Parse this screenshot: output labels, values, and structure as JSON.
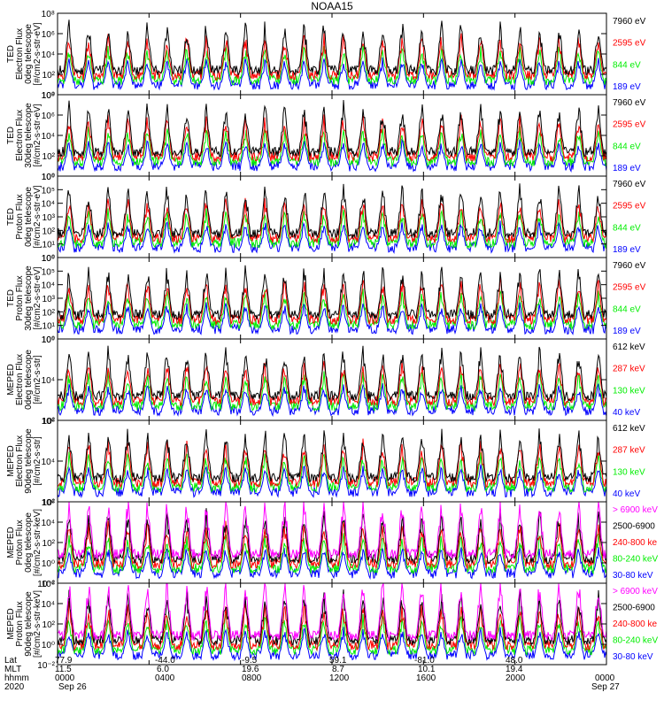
{
  "title": "NOAA15",
  "colors": {
    "blue": "#0000ff",
    "red": "#ff0000",
    "green": "#00ee00",
    "black": "#000000",
    "magenta": "#ff00ff"
  },
  "chart_data": [
    {
      "type": "line",
      "instrument": "TED",
      "ylabel": [
        "TED",
        "Electron Flux",
        "0deg telescope",
        "[#/cm2-s-str-eV]"
      ],
      "log_y": true,
      "ylim_exponent": [
        0,
        8
      ],
      "y_ticks": [
        "10⁰",
        "10²",
        "10⁴",
        "10⁶",
        "10⁸"
      ],
      "series": [
        {
          "name": "7960 eV",
          "color": "black"
        },
        {
          "name": "2595 eV",
          "color": "red"
        },
        {
          "name": "844 eV",
          "color": "green"
        },
        {
          "name": "189 eV",
          "color": "blue"
        }
      ]
    },
    {
      "type": "line",
      "instrument": "TED",
      "ylabel": [
        "TED",
        "Electron Flux",
        "30deg telescope",
        "[#/cm2-s-str-eV]"
      ],
      "log_y": true,
      "ylim_exponent": [
        0,
        8
      ],
      "y_ticks": [
        "10⁰",
        "10²",
        "10⁴",
        "10⁶",
        "10⁸"
      ],
      "series": [
        {
          "name": "7960 eV",
          "color": "black"
        },
        {
          "name": "2595 eV",
          "color": "red"
        },
        {
          "name": "844 eV",
          "color": "green"
        },
        {
          "name": "189 eV",
          "color": "blue"
        }
      ]
    },
    {
      "type": "line",
      "instrument": "TED",
      "ylabel": [
        "TED",
        "Proton Flux",
        "0deg telescope",
        "[#/cm2-s-str-eV]"
      ],
      "log_y": true,
      "ylim_exponent": [
        0,
        6
      ],
      "y_ticks": [
        "10⁰",
        "10¹",
        "10²",
        "10³",
        "10⁴",
        "10⁵",
        "10⁶"
      ],
      "series": [
        {
          "name": "7960 eV",
          "color": "black"
        },
        {
          "name": "2595 eV",
          "color": "red"
        },
        {
          "name": "844 eV",
          "color": "green"
        },
        {
          "name": "189 eV",
          "color": "blue"
        }
      ]
    },
    {
      "type": "line",
      "instrument": "TED",
      "ylabel": [
        "TED",
        "Proton Flux",
        "30deg telescope",
        "[#/cm2-s-str-eV]"
      ],
      "log_y": true,
      "ylim_exponent": [
        0,
        6
      ],
      "y_ticks": [
        "10⁰",
        "10¹",
        "10²",
        "10³",
        "10⁴",
        "10⁵",
        "10⁶"
      ],
      "series": [
        {
          "name": "7960 eV",
          "color": "black"
        },
        {
          "name": "2595 eV",
          "color": "red"
        },
        {
          "name": "844 eV",
          "color": "green"
        },
        {
          "name": "189 eV",
          "color": "blue"
        }
      ]
    },
    {
      "type": "line",
      "instrument": "MEPED",
      "ylabel": [
        "MEPED",
        "Electron Flux",
        "0deg telescope",
        "[#/cm2-s-str]"
      ],
      "log_y": true,
      "ylim_exponent": [
        1,
        7
      ],
      "y_ticks": [
        "10²",
        "10⁴",
        "10⁶"
      ],
      "series": [
        {
          "name": "612 keV",
          "color": "black"
        },
        {
          "name": "287 keV",
          "color": "red"
        },
        {
          "name": "130 keV",
          "color": "green"
        },
        {
          "name": "40 keV",
          "color": "blue"
        }
      ]
    },
    {
      "type": "line",
      "instrument": "MEPED",
      "ylabel": [
        "MEPED",
        "Electron Flux",
        "90deg telescope",
        "[#/cm2-s-str]"
      ],
      "log_y": true,
      "ylim_exponent": [
        1,
        7
      ],
      "y_ticks": [
        "10²",
        "10⁴",
        "10⁶"
      ],
      "series": [
        {
          "name": "612 keV",
          "color": "black"
        },
        {
          "name": "287 keV",
          "color": "red"
        },
        {
          "name": "130 keV",
          "color": "green"
        },
        {
          "name": "40 keV",
          "color": "blue"
        }
      ]
    },
    {
      "type": "line",
      "instrument": "MEPED",
      "ylabel": [
        "MEPED",
        "Proton Flux",
        "0deg telescope",
        "[#/cm2-s-str-keV]"
      ],
      "log_y": true,
      "ylim_exponent": [
        -2,
        7
      ],
      "y_ticks": [
        "10⁻²",
        "10⁰",
        "10²",
        "10⁴",
        "10⁶"
      ],
      "series": [
        {
          "name": "> 6900 keV",
          "color": "magenta"
        },
        {
          "name": "2500-6900",
          "color": "black"
        },
        {
          "name": "240-800 ke",
          "color": "red"
        },
        {
          "name": "80-240 keV",
          "color": "green"
        },
        {
          "name": "30-80 keV",
          "color": "blue"
        }
      ]
    },
    {
      "type": "line",
      "instrument": "MEPED",
      "ylabel": [
        "MEPED",
        "Proton Flux",
        "90deg telescope",
        "[#/cm2-s-str-keV]"
      ],
      "log_y": true,
      "ylim_exponent": [
        -2,
        7
      ],
      "y_ticks": [
        "10⁻²",
        "10⁰",
        "10²",
        "10⁴",
        "10⁶"
      ],
      "series": [
        {
          "name": "> 6900 keV",
          "color": "magenta"
        },
        {
          "name": "2500-6900",
          "color": "black"
        },
        {
          "name": "240-800 ke",
          "color": "red"
        },
        {
          "name": "80-240 keV",
          "color": "green"
        },
        {
          "name": "30-80 keV",
          "color": "blue"
        }
      ]
    }
  ],
  "x_axis": {
    "row_labels": [
      "Lat",
      "MLT",
      "hhmm",
      "2020"
    ],
    "lat": [
      "77.9",
      "-44.0",
      "-9.5",
      "59.1",
      "-81.0",
      "48.0",
      ""
    ],
    "mlt": [
      "11.5",
      "6.0",
      "19.6",
      "8.7",
      "10.1",
      "19.4",
      ""
    ],
    "hhmm": [
      "0000",
      "0400",
      "0800",
      "1200",
      "1600",
      "2000",
      "0000"
    ],
    "date": [
      "Sep 26",
      "Sep 27"
    ]
  }
}
